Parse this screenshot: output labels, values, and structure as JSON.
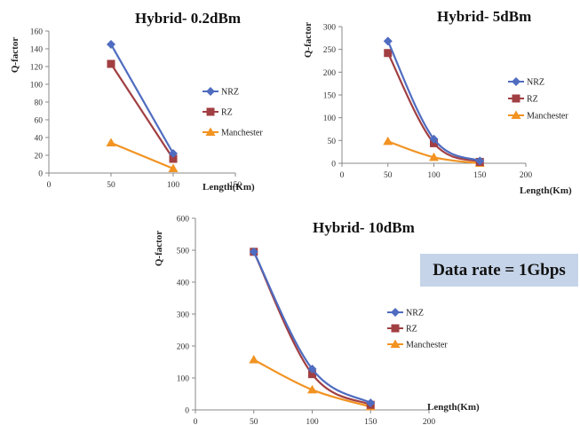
{
  "info_box": {
    "text": "Data rate = 1Gbps"
  },
  "chart_data": [
    {
      "type": "line",
      "title": "Hybrid- 0.2dBm",
      "xlabel": "Length(Km)",
      "ylabel": "Q-factor",
      "xlim": [
        0,
        150
      ],
      "ylim": [
        0,
        160
      ],
      "xticks": [
        0,
        50,
        100,
        150
      ],
      "yticks": [
        0,
        20,
        40,
        60,
        80,
        100,
        120,
        140,
        160
      ],
      "legend": "right",
      "series": [
        {
          "name": "NRZ",
          "color": "#4f6cc0",
          "marker": "diamond",
          "x": [
            50,
            100
          ],
          "y": [
            145,
            22
          ]
        },
        {
          "name": "RZ",
          "color": "#a13f42",
          "marker": "square",
          "x": [
            50,
            100
          ],
          "y": [
            123,
            16
          ]
        },
        {
          "name": "Manchester",
          "color": "#f29322",
          "marker": "triangle",
          "x": [
            50,
            100
          ],
          "y": [
            34,
            5
          ]
        }
      ]
    },
    {
      "type": "line",
      "title": "Hybrid- 5dBm",
      "xlabel": "Length(Km)",
      "ylabel": "Q-factor",
      "xlim": [
        0,
        200
      ],
      "ylim": [
        0,
        300
      ],
      "xticks": [
        0,
        50,
        100,
        150,
        200
      ],
      "yticks": [
        0,
        50,
        100,
        150,
        200,
        250,
        300
      ],
      "legend": "right",
      "series": [
        {
          "name": "NRZ",
          "color": "#4f6cc0",
          "marker": "diamond",
          "x": [
            50,
            100,
            150
          ],
          "y": [
            268,
            53,
            5
          ]
        },
        {
          "name": "RZ",
          "color": "#a13f42",
          "marker": "square",
          "x": [
            50,
            100,
            150
          ],
          "y": [
            242,
            44,
            3
          ]
        },
        {
          "name": "Manchester",
          "color": "#f29322",
          "marker": "triangle",
          "x": [
            50,
            100,
            150
          ],
          "y": [
            48,
            13,
            0
          ]
        }
      ]
    },
    {
      "type": "line",
      "title": "Hybrid- 10dBm",
      "xlabel": "Length(Km)",
      "ylabel": "Q-factor",
      "xlim": [
        0,
        200
      ],
      "ylim": [
        0,
        600
      ],
      "xticks": [
        0,
        50,
        100,
        150,
        200
      ],
      "yticks": [
        0,
        100,
        200,
        300,
        400,
        500,
        600
      ],
      "legend": "right",
      "series": [
        {
          "name": "NRZ",
          "color": "#4f6cc0",
          "marker": "diamond",
          "x": [
            50,
            100,
            150
          ],
          "y": [
            495,
            128,
            22
          ]
        },
        {
          "name": "RZ",
          "color": "#a13f42",
          "marker": "square",
          "x": [
            50,
            100,
            150
          ],
          "y": [
            495,
            112,
            16
          ]
        },
        {
          "name": "Manchester",
          "color": "#f29322",
          "marker": "triangle",
          "x": [
            50,
            100,
            150
          ],
          "y": [
            157,
            63,
            10
          ]
        }
      ]
    }
  ]
}
